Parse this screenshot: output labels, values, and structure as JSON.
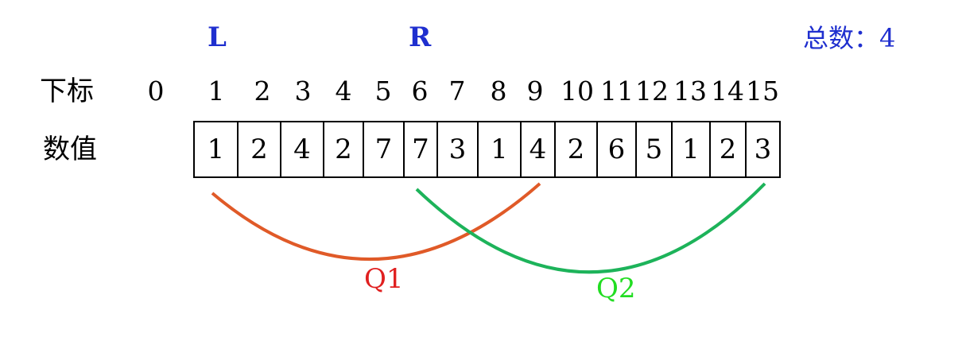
{
  "pointers": {
    "left": "L",
    "right": "R",
    "left_index": 1,
    "right_index": 6
  },
  "total": "总数：4",
  "labels": {
    "index_row": "下标",
    "value_row": "数值"
  },
  "index_zero": "0",
  "cells": [
    {
      "index": "1",
      "value": "1"
    },
    {
      "index": "2",
      "value": "2"
    },
    {
      "index": "3",
      "value": "4"
    },
    {
      "index": "4",
      "value": "2"
    },
    {
      "index": "5",
      "value": "7"
    },
    {
      "index": "6",
      "value": "7"
    },
    {
      "index": "7",
      "value": "3"
    },
    {
      "index": "8",
      "value": "1"
    },
    {
      "index": "9",
      "value": "4"
    },
    {
      "index": "10",
      "value": "2"
    },
    {
      "index": "11",
      "value": "6"
    },
    {
      "index": "12",
      "value": "5"
    },
    {
      "index": "13",
      "value": "1"
    },
    {
      "index": "14",
      "value": "2"
    },
    {
      "index": "15",
      "value": "3"
    }
  ],
  "queries": [
    {
      "label": "Q1",
      "from": 1,
      "to": 9,
      "color": "#e05a28",
      "label_color": "#e02020"
    },
    {
      "label": "Q2",
      "from": 6,
      "to": 15,
      "color": "#1db35a",
      "label_color": "#22dd22"
    }
  ]
}
